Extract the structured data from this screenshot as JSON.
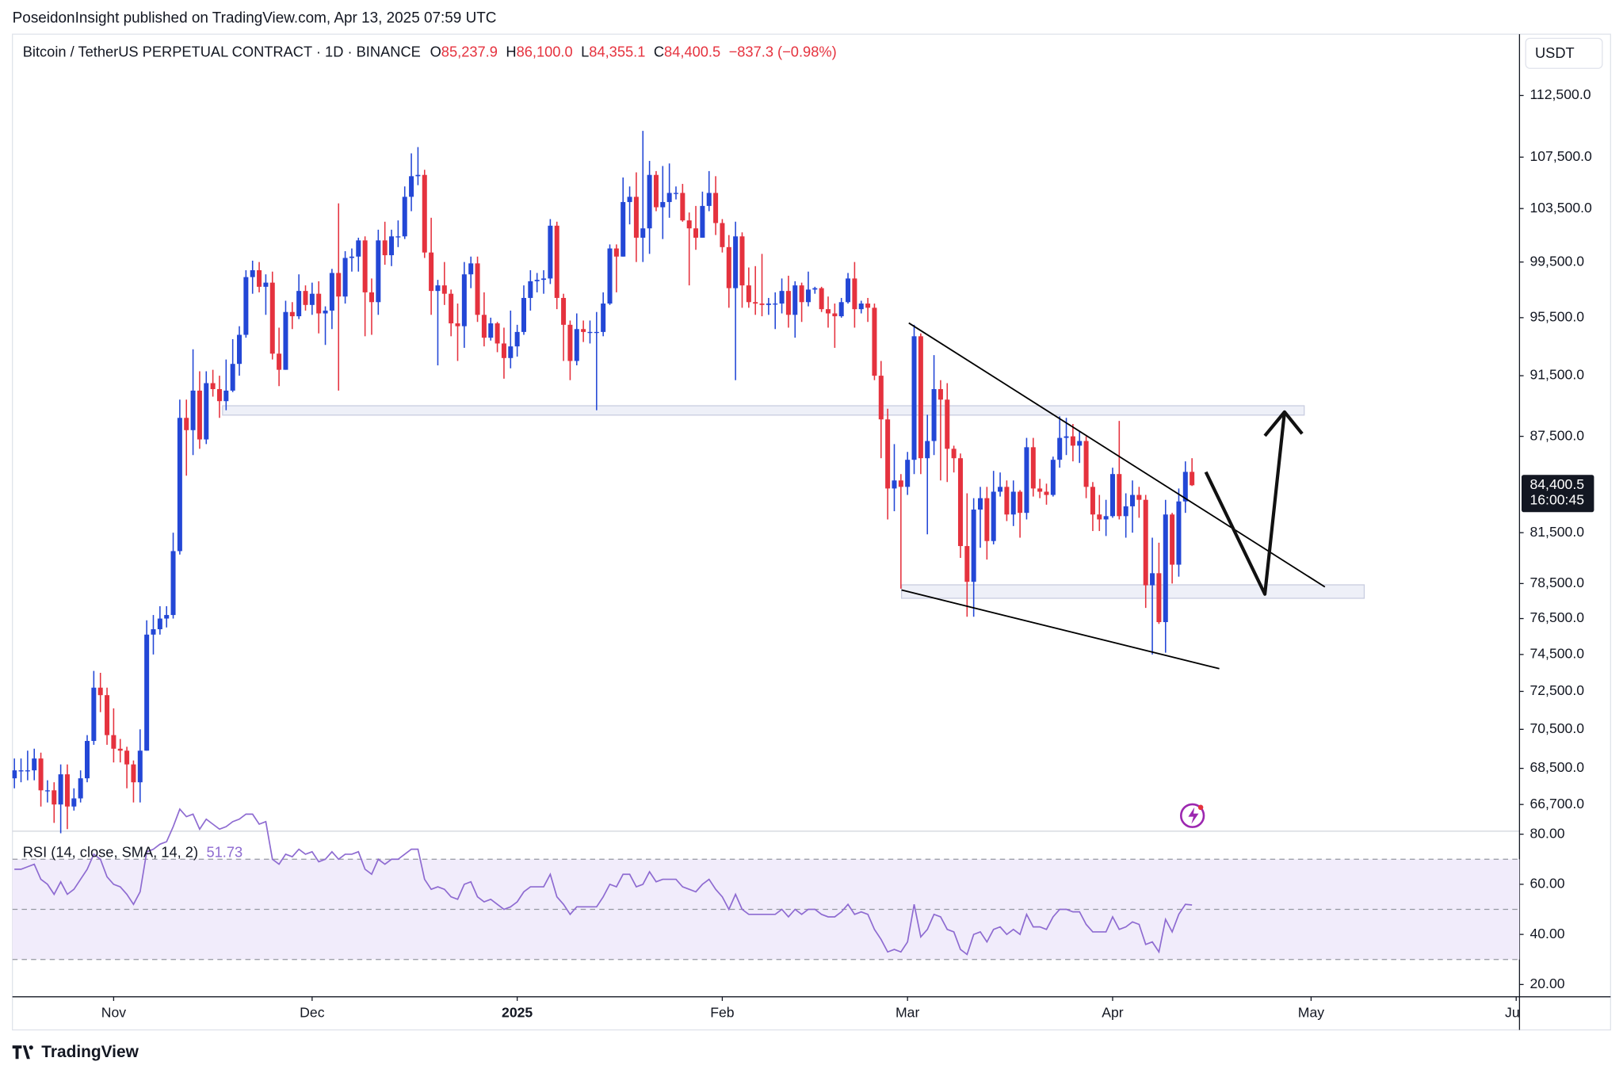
{
  "header": {
    "title": "PoseidonInsight published on TradingView.com, Apr 13, 2025 07:59 UTC"
  },
  "footer": {
    "brand": "TradingView"
  },
  "chart_data": {
    "type": "candlestick",
    "symbol": "Bitcoin / TetherUS PERPETUAL CONTRACT · 1D · BINANCE",
    "legend_values": [
      {
        "key": "O",
        "value": "85,237.9"
      },
      {
        "key": "H",
        "value": "86,100.0"
      },
      {
        "key": "L",
        "value": "84,355.1"
      },
      {
        "key": "C",
        "value": "84,400.5"
      }
    ],
    "change": "−837.3 (−0.98%)",
    "currency": "USDT",
    "log_scale": true,
    "grid": false,
    "up_color": "#2347d6",
    "down_color": "#e5323e",
    "xlim": [
      -0.3,
      227.5
    ],
    "xticks": [
      {
        "value": 15,
        "label": "Nov"
      },
      {
        "value": 45,
        "label": "Dec"
      },
      {
        "value": 76,
        "label": "2025"
      },
      {
        "value": 107,
        "label": "Feb"
      },
      {
        "value": 135,
        "label": "Mar"
      },
      {
        "value": 166,
        "label": "Apr"
      },
      {
        "value": 196,
        "label": "May"
      },
      {
        "value": 227,
        "label": "Jun"
      }
    ],
    "ylim": [
      65400,
      117700
    ],
    "yticks": [
      {
        "value": 66700,
        "label": "66,700.0"
      },
      {
        "value": 68500,
        "label": "68,500.0"
      },
      {
        "value": 70500,
        "label": "70,500.0"
      },
      {
        "value": 72500,
        "label": "72,500.0"
      },
      {
        "value": 74500,
        "label": "74,500.0"
      },
      {
        "value": 76500,
        "label": "76,500.0"
      },
      {
        "value": 78500,
        "label": "78,500.0"
      },
      {
        "value": 81500,
        "label": "81,500.0"
      },
      {
        "value": 87500,
        "label": "87,500.0"
      },
      {
        "value": 91500,
        "label": "91,500.0"
      },
      {
        "value": 95500,
        "label": "95,500.0"
      },
      {
        "value": 99500,
        "label": "99,500.0"
      },
      {
        "value": 103500,
        "label": "103,500.0"
      },
      {
        "value": 107500,
        "label": "107,500.0"
      },
      {
        "value": 112500,
        "label": "112,500.0"
      }
    ],
    "last_price_label": {
      "value": 84400.5,
      "label": "84,400.5"
    },
    "countdown": "16:00:45",
    "open": [
      68000,
      68400,
      68400,
      68400,
      69000,
      67400,
      67400,
      66700,
      68200,
      66600,
      67000,
      68000,
      69900,
      72700,
      72300,
      70200,
      69500,
      69400,
      68700,
      67800,
      69400,
      75600,
      75900,
      76500,
      76700,
      80400,
      88700,
      87900,
      90500,
      87300,
      91000,
      90600,
      89800,
      90500,
      92300,
      94300,
      98400,
      98900,
      97700,
      98000,
      93000,
      91900,
      95900,
      95600,
      97400,
      96400,
      97200,
      95800,
      96000,
      98700,
      97000,
      99800,
      99900,
      101100,
      97300,
      96600,
      101100,
      100000,
      101400,
      101400,
      104400,
      106000,
      106100,
      100200,
      97400,
      97800,
      97200,
      95100,
      94900,
      98600,
      99400,
      95700,
      94100,
      95100,
      93700,
      92700,
      93500,
      94500,
      96900,
      98100,
      98200,
      98300,
      102200,
      96900,
      95000,
      92500,
      94700,
      94500,
      94500,
      94500,
      96500,
      100500,
      99900,
      104000,
      104400,
      101300,
      102000,
      106100,
      103600,
      104000,
      104700,
      104700,
      102600,
      102000,
      101300,
      103700,
      104700,
      102400,
      100600,
      97600,
      101400,
      97800,
      96600,
      96500,
      96400,
      96500,
      96500,
      97400,
      95700,
      97800,
      96600,
      97500,
      97600,
      96100,
      95800,
      95600,
      96600,
      98300,
      96100,
      96500,
      96200,
      91500,
      88600,
      84200,
      84700,
      84300,
      86000,
      94200,
      86100,
      87200,
      90600,
      89900,
      86700,
      86100,
      80700,
      78600,
      82900,
      83600,
      81000,
      84000,
      84300,
      82600,
      84000,
      82700,
      86800,
      84200,
      84000,
      83800,
      86000,
      87400,
      87500,
      86900,
      87200,
      84300,
      82600,
      82300,
      82500,
      85100,
      82500,
      83100,
      83800,
      83500,
      78400,
      79100,
      76300,
      82600,
      79600,
      83400,
      85237.9
    ],
    "high": [
      69000,
      69000,
      69400,
      69500,
      69300,
      67900,
      67800,
      68700,
      68700,
      67500,
      68400,
      70200,
      73600,
      73500,
      72700,
      71600,
      70000,
      69600,
      68900,
      70500,
      76400,
      76700,
      77200,
      77200,
      81500,
      89900,
      89900,
      93300,
      91800,
      91800,
      91900,
      91500,
      92600,
      94000,
      94900,
      98900,
      99600,
      99500,
      98600,
      98800,
      94800,
      96700,
      96600,
      98600,
      97800,
      98000,
      98100,
      96300,
      99000,
      103900,
      100300,
      100500,
      101300,
      101400,
      98300,
      101900,
      102500,
      101900,
      102600,
      105200,
      107800,
      108300,
      106500,
      102800,
      98200,
      99500,
      97500,
      96500,
      99500,
      99900,
      99900,
      97300,
      95500,
      95200,
      94800,
      96000,
      95000,
      97800,
      98900,
      98700,
      98900,
      102700,
      102500,
      97200,
      95300,
      95800,
      95300,
      95300,
      95900,
      97300,
      100800,
      100800,
      105900,
      105200,
      106300,
      109600,
      107200,
      106400,
      106800,
      107000,
      105200,
      105400,
      103200,
      103700,
      104800,
      106400,
      106000,
      102700,
      101500,
      102500,
      101700,
      99100,
      99200,
      100100,
      96900,
      97300,
      98300,
      98500,
      98100,
      98000,
      98800,
      97700,
      97700,
      97000,
      96500,
      96900,
      98700,
      99500,
      96700,
      96900,
      96500,
      92500,
      89300,
      87000,
      85100,
      86500,
      95000,
      94400,
      88900,
      92900,
      91200,
      91000,
      86900,
      86400,
      83900,
      83600,
      84300,
      84300,
      85300,
      85200,
      84700,
      84700,
      84100,
      87400,
      87400,
      84800,
      84500,
      86200,
      88800,
      88700,
      88300,
      87800,
      87500,
      84600,
      83800,
      83500,
      85500,
      88500,
      83900,
      84700,
      84300,
      83800,
      81200,
      80900,
      83500,
      82700,
      84200,
      85900,
      86100
    ],
    "low": [
      67500,
      67800,
      67900,
      67900,
      66600,
      66800,
      65800,
      65300,
      65500,
      66400,
      66800,
      67800,
      69700,
      71400,
      69700,
      68800,
      68800,
      67500,
      66800,
      66800,
      69400,
      74500,
      75600,
      76000,
      76500,
      80200,
      85000,
      86300,
      86700,
      87000,
      90100,
      88700,
      89200,
      90400,
      91500,
      94100,
      97200,
      97300,
      95700,
      92600,
      90800,
      91900,
      94700,
      95400,
      96000,
      95700,
      94400,
      93600,
      94700,
      90500,
      96500,
      98800,
      98800,
      94200,
      94300,
      95700,
      99300,
      99200,
      100600,
      101200,
      103300,
      105300,
      99800,
      95700,
      92200,
      96400,
      94200,
      92500,
      93400,
      97600,
      95200,
      93500,
      93900,
      93100,
      91300,
      92000,
      92800,
      94300,
      96000,
      97300,
      97200,
      97900,
      96100,
      92500,
      91200,
      92200,
      93800,
      93700,
      89200,
      94200,
      96400,
      97300,
      99900,
      102300,
      99500,
      99500,
      100100,
      103300,
      101200,
      102800,
      104200,
      102500,
      97800,
      100400,
      101300,
      103300,
      101500,
      100200,
      96200,
      91200,
      96200,
      96200,
      95700,
      95600,
      95700,
      94700,
      95800,
      94800,
      94100,
      95200,
      96300,
      97200,
      95900,
      94800,
      93400,
      95500,
      96500,
      94800,
      95800,
      95200,
      91200,
      86100,
      82300,
      82800,
      78200,
      83800,
      85100,
      85100,
      81400,
      86300,
      84700,
      84600,
      85200,
      80000,
      76600,
      76600,
      80600,
      79900,
      80800,
      83700,
      82200,
      81900,
      81200,
      82300,
      83700,
      83600,
      83200,
      83700,
      85500,
      86300,
      85900,
      85800,
      83600,
      81600,
      81600,
      81300,
      82400,
      82300,
      81200,
      81500,
      82400,
      77100,
      74500,
      76200,
      74600,
      78500,
      78900,
      82700,
      84355.1
    ],
    "close": [
      68400,
      68400,
      68400,
      69000,
      67400,
      67400,
      66700,
      68200,
      66600,
      67000,
      68000,
      69900,
      72700,
      72300,
      70200,
      69500,
      69400,
      68700,
      67800,
      69400,
      75600,
      75900,
      76500,
      76700,
      80400,
      88700,
      87900,
      90500,
      87300,
      91000,
      90600,
      89800,
      90500,
      92300,
      94300,
      98400,
      98900,
      97700,
      98000,
      93000,
      91900,
      95900,
      95600,
      97400,
      96400,
      97200,
      95800,
      96000,
      98700,
      97000,
      99800,
      99900,
      101100,
      97300,
      96600,
      101100,
      100000,
      101400,
      101400,
      104400,
      106000,
      106100,
      100200,
      97400,
      97800,
      97200,
      95100,
      94900,
      98600,
      99400,
      95700,
      94100,
      95100,
      93700,
      92700,
      93500,
      94500,
      96900,
      98100,
      98200,
      98300,
      102200,
      96900,
      95000,
      92500,
      94700,
      94500,
      94500,
      94500,
      96500,
      100500,
      99900,
      104000,
      104400,
      101300,
      102000,
      106100,
      103600,
      104000,
      104700,
      104700,
      102600,
      102000,
      101300,
      103700,
      104700,
      102400,
      100600,
      97600,
      101400,
      97800,
      96600,
      96500,
      96400,
      96500,
      96500,
      97400,
      95700,
      97800,
      96600,
      97500,
      97600,
      96100,
      95800,
      95600,
      96600,
      98300,
      96100,
      96500,
      96200,
      91500,
      88600,
      84200,
      84700,
      84300,
      86000,
      94200,
      86100,
      87200,
      90600,
      89900,
      86700,
      86100,
      80700,
      78600,
      82900,
      83600,
      81000,
      84000,
      84300,
      82600,
      84000,
      82700,
      86800,
      84200,
      84000,
      83800,
      86000,
      87400,
      87500,
      86900,
      87200,
      84300,
      82600,
      82300,
      82500,
      85100,
      82500,
      83100,
      83800,
      83500,
      78400,
      79100,
      76300,
      82600,
      79600,
      83400,
      85237.9,
      84400.5
    ],
    "rsi": {
      "title": "RSI (14, close, SMA, 14, 2)",
      "value_label": "51.73",
      "color": "#8e6bd1",
      "band_color": "#f1ecfb",
      "ylim": [
        15.1,
        81.2
      ],
      "yticks": [
        {
          "value": 80,
          "label": "80.00"
        },
        {
          "value": 60,
          "label": "60.00"
        },
        {
          "value": 40,
          "label": "40.00"
        },
        {
          "value": 20,
          "label": "20.00"
        }
      ],
      "levels": [
        70,
        50,
        30
      ],
      "values": [
        66,
        66,
        67,
        68,
        62,
        60,
        56,
        61,
        56,
        58,
        62,
        66,
        72,
        70,
        63,
        60,
        59,
        56,
        52,
        57,
        73,
        74,
        76,
        77,
        83,
        90,
        87,
        88,
        82,
        86,
        84,
        82,
        83,
        85,
        86,
        88,
        88,
        84,
        85,
        70,
        68,
        72,
        71,
        74,
        72,
        73,
        69,
        70,
        73,
        70,
        72,
        72,
        73,
        66,
        64,
        70,
        68,
        70,
        70,
        72,
        74,
        74,
        62,
        58,
        59,
        58,
        55,
        54,
        60,
        61,
        55,
        53,
        54,
        52,
        50,
        51,
        53,
        57,
        59,
        59,
        59,
        64,
        55,
        52,
        48,
        51,
        51,
        51,
        51,
        55,
        60,
        59,
        64,
        64,
        59,
        60,
        65,
        61,
        62,
        62,
        62,
        59,
        58,
        57,
        60,
        62,
        58,
        55,
        50,
        56,
        50,
        48,
        48,
        48,
        48,
        48,
        50,
        47,
        50,
        48,
        50,
        50,
        48,
        47,
        47,
        49,
        52,
        48,
        49,
        48,
        42,
        38,
        33,
        34,
        33,
        37,
        52,
        39,
        42,
        48,
        47,
        42,
        41,
        34,
        32,
        40,
        41,
        37,
        42,
        43,
        40,
        42,
        40,
        48,
        43,
        43,
        42,
        47,
        50,
        50,
        49,
        49,
        44,
        41,
        41,
        41,
        47,
        42,
        43,
        45,
        44,
        36,
        37,
        33,
        46,
        41,
        48,
        52,
        51.73
      ]
    }
  }
}
